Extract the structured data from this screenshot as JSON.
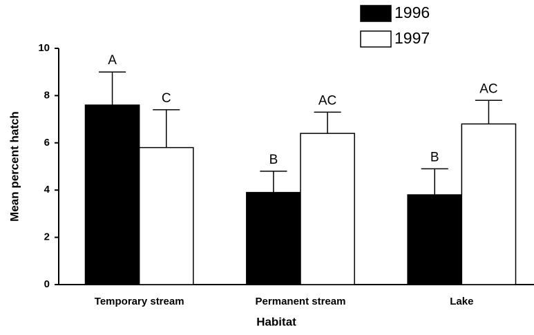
{
  "chart_data": {
    "type": "bar",
    "x_label": "Habitat",
    "y_label": "Mean percent hatch",
    "categories": [
      "Temporary stream",
      "Permanent stream",
      "Lake"
    ],
    "series": [
      {
        "name": "1996",
        "color": "#000000",
        "values": [
          7.6,
          3.9,
          3.8
        ],
        "errors": [
          1.4,
          0.9,
          1.1
        ],
        "letters": [
          "A",
          "B",
          "B"
        ]
      },
      {
        "name": "1997",
        "color": "#ffffff",
        "values": [
          5.8,
          6.4,
          6.8
        ],
        "errors": [
          1.6,
          0.9,
          1.0
        ],
        "letters": [
          "C",
          "AC",
          "AC"
        ]
      }
    ],
    "ylim": [
      0,
      10
    ],
    "yticks": [
      0,
      2,
      4,
      6,
      8,
      10
    ],
    "grid": false,
    "legend": "top-right"
  }
}
